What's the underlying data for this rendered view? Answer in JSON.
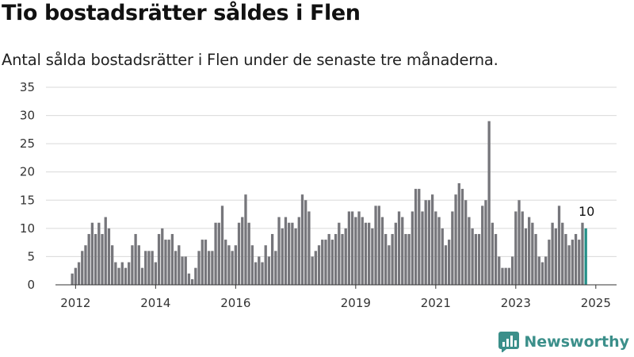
{
  "header": {
    "title": "Tio bostadsrätter såldes i Flen",
    "subtitle": "Antal sålda bostadsrätter i Flen under de senaste tre månaderna."
  },
  "brand": {
    "name": "Newsworthy",
    "icon": "newsworthy-logo-icon",
    "color": "#3b8f8a"
  },
  "chart_data": {
    "type": "bar",
    "title": "Tio bostadsrätter såldes i Flen",
    "subtitle": "Antal sålda bostadsrätter i Flen under de senaste tre månaderna.",
    "xlabel": "",
    "ylabel": "",
    "ylim": [
      0,
      35
    ],
    "yticks": [
      0,
      5,
      10,
      15,
      20,
      25,
      30,
      35
    ],
    "xtick_labels": [
      "2012",
      "2014",
      "2016",
      "2019",
      "2021",
      "2023",
      "2025"
    ],
    "xtick_dates": [
      "2012-01",
      "2014-01",
      "2016-01",
      "2019-01",
      "2021-01",
      "2023-01",
      "2025-01"
    ],
    "grid": true,
    "bar_color": "#76767b",
    "highlight_color": "#249088",
    "highlight_label": "10",
    "x_start": "2011-12",
    "values": [
      2,
      3,
      4,
      6,
      7,
      9,
      11,
      9,
      11,
      9,
      12,
      10,
      7,
      4,
      3,
      4,
      3,
      4,
      7,
      9,
      7,
      3,
      6,
      6,
      6,
      4,
      9,
      10,
      8,
      8,
      9,
      6,
      7,
      5,
      5,
      2,
      1,
      3,
      6,
      8,
      8,
      6,
      6,
      11,
      11,
      14,
      8,
      7,
      6,
      7,
      11,
      12,
      16,
      11,
      7,
      4,
      5,
      4,
      7,
      5,
      9,
      6,
      12,
      10,
      12,
      11,
      11,
      10,
      12,
      16,
      15,
      13,
      5,
      6,
      7,
      8,
      8,
      9,
      8,
      9,
      11,
      9,
      10,
      13,
      13,
      12,
      13,
      12,
      11,
      11,
      10,
      14,
      14,
      12,
      9,
      7,
      9,
      11,
      13,
      12,
      9,
      9,
      13,
      17,
      17,
      13,
      15,
      15,
      16,
      13,
      12,
      10,
      7,
      8,
      13,
      16,
      18,
      17,
      15,
      12,
      10,
      9,
      9,
      14,
      15,
      29,
      11,
      9,
      5,
      3,
      3,
      3,
      5,
      13,
      15,
      13,
      10,
      12,
      11,
      9,
      5,
      4,
      5,
      8,
      11,
      10,
      14,
      11,
      9,
      7,
      8,
      9,
      8,
      11,
      10
    ]
  }
}
